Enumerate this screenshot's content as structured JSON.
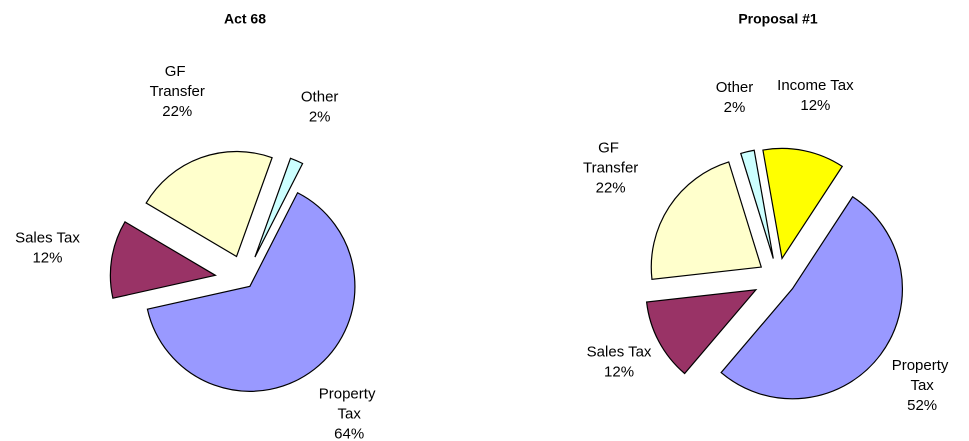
{
  "chart_data": [
    {
      "type": "pie",
      "title": "Act 68",
      "categories": [
        "Property Tax",
        "Sales Tax",
        "GF Transfer",
        "Other"
      ],
      "values": [
        64,
        12,
        22,
        2
      ],
      "value_labels": [
        "64%",
        "12%",
        "22%",
        "2%"
      ],
      "colors": [
        "#9999ff",
        "#993366",
        "#ffffcc",
        "#ccffff"
      ]
    },
    {
      "type": "pie",
      "title": "Proposal #1",
      "categories": [
        "Income Tax",
        "Property Tax",
        "Sales Tax",
        "GF Transfer",
        "Other"
      ],
      "values": [
        12,
        52,
        12,
        22,
        2
      ],
      "value_labels": [
        "12%",
        "52%",
        "12%",
        "22%",
        "2%"
      ],
      "colors": [
        "#ffff00",
        "#9999ff",
        "#993366",
        "#ffffcc",
        "#ccffff"
      ]
    }
  ]
}
